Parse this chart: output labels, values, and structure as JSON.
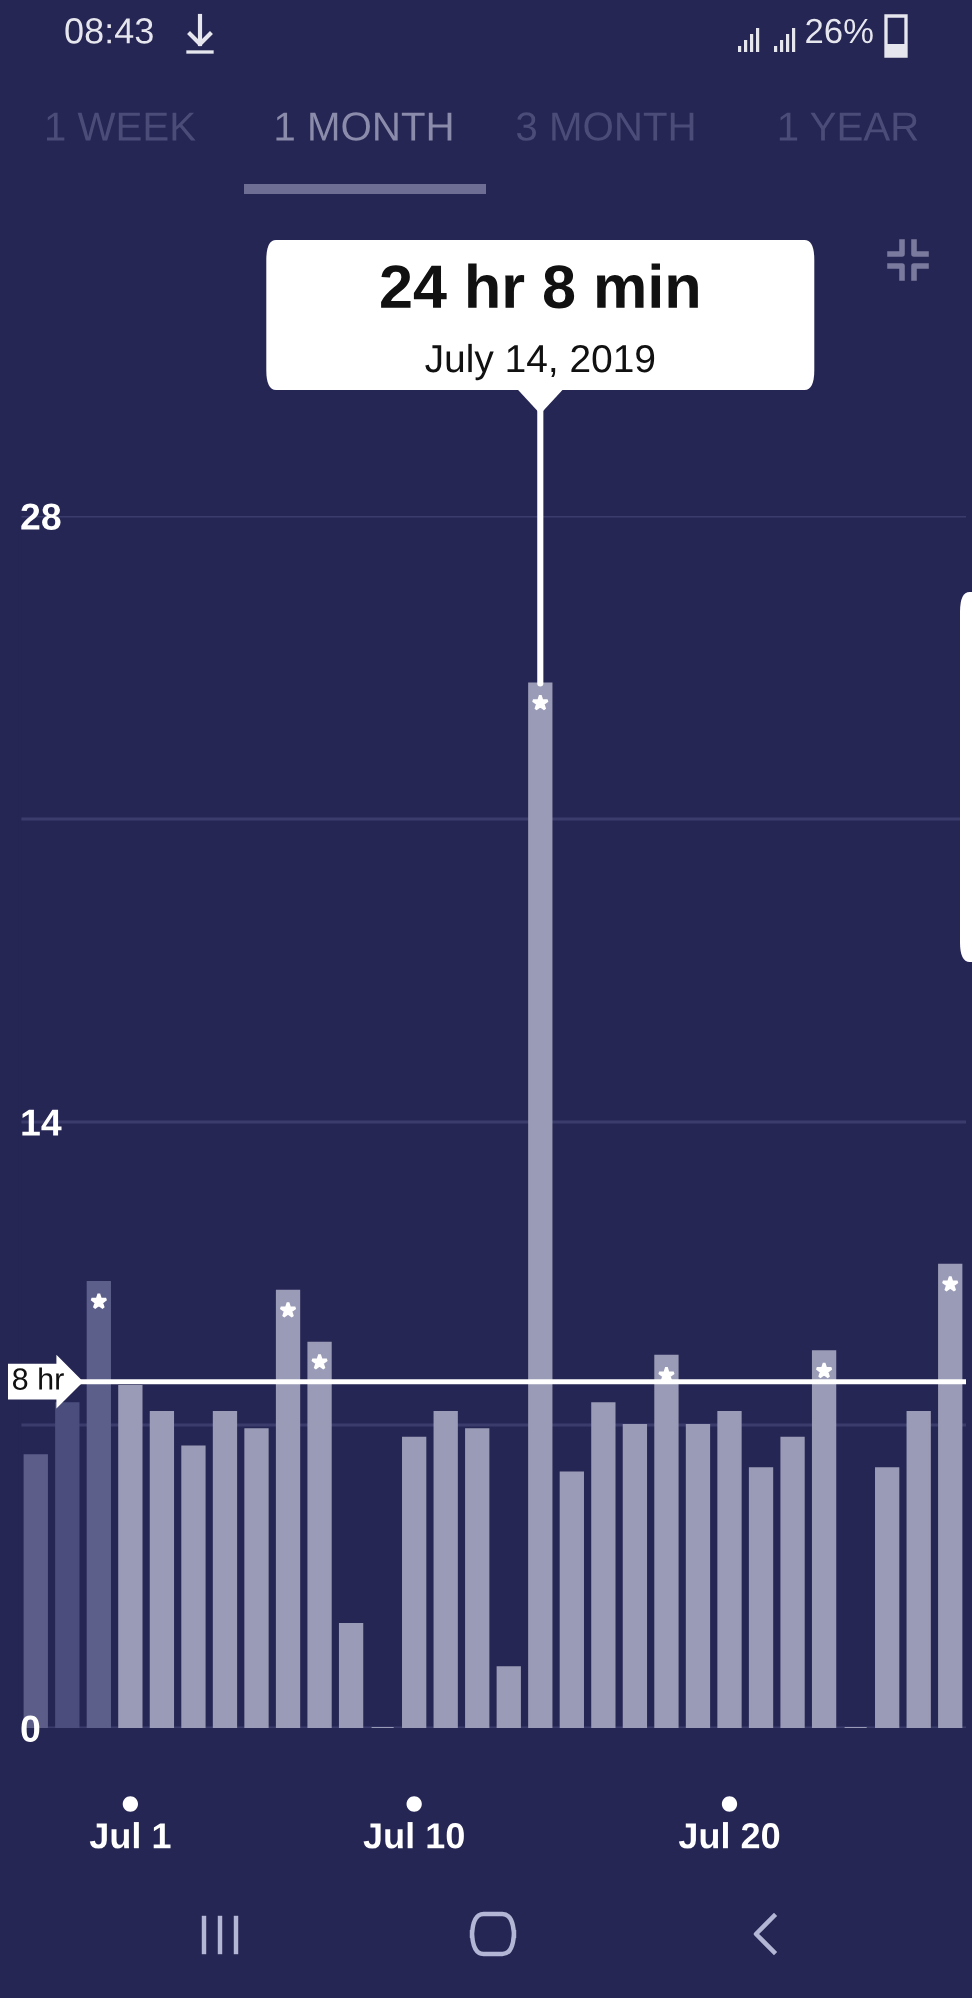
{
  "chart_data": {
    "type": "bar",
    "x": [
      "2019-06-28",
      "2019-06-29",
      "2019-06-30",
      "2019-07-01",
      "2019-07-02",
      "2019-07-03",
      "2019-07-04",
      "2019-07-05",
      "2019-07-06",
      "2019-07-07",
      "2019-07-08",
      "2019-07-09",
      "2019-07-10",
      "2019-07-11",
      "2019-07-12",
      "2019-07-13",
      "2019-07-14",
      "2019-07-15",
      "2019-07-16",
      "2019-07-17",
      "2019-07-18",
      "2019-07-19",
      "2019-07-20",
      "2019-07-21",
      "2019-07-22",
      "2019-07-23",
      "2019-07-24",
      "2019-07-25",
      "2019-07-26",
      "2019-07-27"
    ],
    "values": [
      6.3,
      7.5,
      10.3,
      7.9,
      7.3,
      6.5,
      7.3,
      6.9,
      10.1,
      8.9,
      2.4,
      0,
      6.7,
      7.3,
      6.9,
      1.4,
      24.13,
      5.9,
      7.5,
      7.0,
      8.6,
      7.0,
      7.3,
      6.0,
      6.7,
      8.7,
      0,
      6.0,
      7.3,
      10.7
    ],
    "colors": [
      "#5c5e89",
      "#4b4e7d",
      "#5d5f8b",
      "#9a9bb6",
      "#9a9bb6",
      "#9a9bb6",
      "#9a9bb6",
      "#9a9bb6",
      "#9a9bb6",
      "#9a9bb6",
      "#9a9bb6",
      "#9a9bb6",
      "#9a9bb6",
      "#9a9bb6",
      "#9a9bb6",
      "#9a9bb6",
      "#9a9bb6",
      "#9a9bb6",
      "#9a9bb6",
      "#9a9bb6",
      "#9a9bb6",
      "#9a9bb6",
      "#9a9bb6",
      "#9a9bb6",
      "#9a9bb6",
      "#9a9bb6",
      "#9a9bb6",
      "#9a9bb6",
      "#9a9bb6",
      "#9a9bb6"
    ],
    "xlim": [
      "2019-06-27T12:00",
      "2019-07-27T12:00"
    ],
    "xticks": [
      {
        "value": "2019-07-01",
        "label": "Jul 1"
      },
      {
        "value": "2019-07-10",
        "label": "Jul 10"
      },
      {
        "value": "2019-07-20",
        "label": "Jul 20"
      }
    ],
    "ylim": [
      0,
      28
    ],
    "yticks": [
      0,
      {
        "value": 7,
        "label": null
      },
      14,
      {
        "value": 21,
        "label": null
      },
      28
    ],
    "grid": "y",
    "ref_lines": [
      {
        "axis": "y",
        "value": 8,
        "label": "8 hr",
        "color": "#ffffff"
      }
    ],
    "annotations": [
      "24 hr 8 min",
      {
        "text": "July 14, 2019",
        "x": "2019-07-14",
        "y": 24.13
      },
      "1 WEEK",
      "1 MONTH",
      "3 MONTH",
      "1 YEAR",
      "08:43",
      "26%"
    ]
  }
}
